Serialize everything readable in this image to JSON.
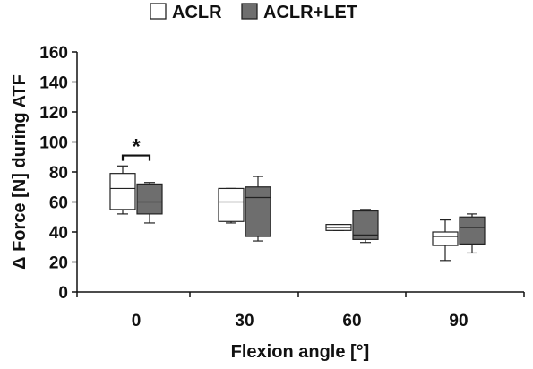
{
  "chart_data": {
    "type": "box",
    "categories": [
      "0",
      "30",
      "60",
      "90"
    ],
    "xlabel": "Flexion angle [°]",
    "ylabel": "Δ Force [N] during ATF",
    "ylim": [
      0,
      160
    ],
    "yticks": [
      0,
      20,
      40,
      60,
      80,
      100,
      120,
      140,
      160
    ],
    "grid": false,
    "legend_position": "top-center",
    "series": [
      {
        "name": "ACLR",
        "color": "#ffffff",
        "boxes": [
          {
            "whisker_low": 52,
            "q1": 55,
            "median": 69,
            "q3": 79,
            "whisker_high": 84
          },
          {
            "whisker_low": 46,
            "q1": 47,
            "median": 60,
            "q3": 69,
            "whisker_high": 69
          },
          {
            "whisker_low": 41,
            "q1": 41,
            "median": 43,
            "q3": 45,
            "whisker_high": 45
          },
          {
            "whisker_low": 21,
            "q1": 31,
            "median": 37,
            "q3": 40,
            "whisker_high": 48
          }
        ]
      },
      {
        "name": "ACLR+LET",
        "color": "#6e6e6e",
        "boxes": [
          {
            "whisker_low": 46,
            "q1": 52,
            "median": 60,
            "q3": 72,
            "whisker_high": 73
          },
          {
            "whisker_low": 34,
            "q1": 37,
            "median": 63,
            "q3": 70,
            "whisker_high": 77
          },
          {
            "whisker_low": 33,
            "q1": 35,
            "median": 38,
            "q3": 54,
            "whisker_high": 55
          },
          {
            "whisker_low": 26,
            "q1": 32,
            "median": 43,
            "q3": 50,
            "whisker_high": 52
          }
        ]
      }
    ],
    "annotations": [
      {
        "text": "*",
        "category": "0",
        "type": "significance-bracket",
        "y": 91
      }
    ]
  }
}
